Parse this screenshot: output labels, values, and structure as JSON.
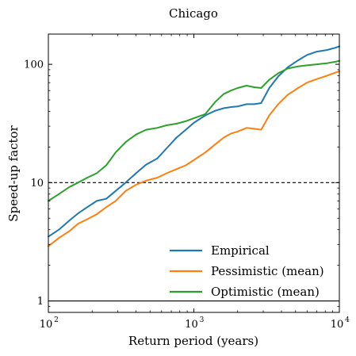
{
  "chart_data": {
    "type": "line",
    "title": "Chicago",
    "xlabel": "Return period (years)",
    "ylabel": "Speed-up factor",
    "xscale": "log",
    "yscale": "log",
    "xlim": [
      100,
      10000
    ],
    "ylim": [
      0.8,
      180
    ],
    "grid": false,
    "legend_position": "lower right",
    "x_ticks": [
      {
        "value": 100,
        "base": "10",
        "exp": "2"
      },
      {
        "value": 1000,
        "base": "10",
        "exp": "3"
      },
      {
        "value": 10000,
        "base": "10",
        "exp": "4"
      }
    ],
    "y_ticks": [
      {
        "value": 1,
        "label": "1"
      },
      {
        "value": 10,
        "label": "10"
      },
      {
        "value": 100,
        "label": "100"
      }
    ],
    "reference_lines": [
      {
        "y": 10,
        "style": "dashed",
        "color": "#000000"
      },
      {
        "y": 1,
        "style": "solid",
        "color": "#000000"
      }
    ],
    "series": [
      {
        "name": "Empirical",
        "color": "#1f77b4",
        "x": [
          100,
          118,
          140,
          160,
          185,
          215,
          250,
          290,
          340,
          400,
          470,
          560,
          650,
          760,
          880,
          1000,
          1200,
          1400,
          1600,
          1800,
          2000,
          2300,
          2600,
          2900,
          3300,
          3800,
          4400,
          5200,
          6000,
          7000,
          8200,
          9400,
          10000
        ],
        "y": [
          3.5,
          4.0,
          4.8,
          5.5,
          6.2,
          7.0,
          7.3,
          8.5,
          10.0,
          12.0,
          14.2,
          16.0,
          19.5,
          24.0,
          28.0,
          32.0,
          37.0,
          40.5,
          42.5,
          43.5,
          44.0,
          46.0,
          46.0,
          47.0,
          63.0,
          79.0,
          94.0,
          108.0,
          120.0,
          128.0,
          132.0,
          138.0,
          142.0
        ]
      },
      {
        "name": "Pessimistic (mean)",
        "color": "#ff7f0e",
        "x": [
          100,
          118,
          140,
          160,
          185,
          215,
          250,
          290,
          340,
          400,
          470,
          560,
          650,
          760,
          880,
          1000,
          1200,
          1400,
          1600,
          1800,
          2000,
          2300,
          2600,
          2900,
          3300,
          3800,
          4400,
          5200,
          6000,
          7000,
          8200,
          9400,
          10000
        ],
        "y": [
          2.9,
          3.4,
          3.9,
          4.5,
          4.9,
          5.4,
          6.2,
          7.0,
          8.5,
          9.6,
          10.4,
          11.0,
          12.0,
          13.0,
          14.0,
          15.5,
          18.0,
          21.0,
          24.0,
          26.0,
          27.0,
          29.0,
          28.5,
          28.0,
          37.0,
          46.0,
          55.0,
          63.0,
          70.0,
          75.0,
          80.0,
          85.0,
          87.0
        ]
      },
      {
        "name": "Optimistic (mean)",
        "color": "#2ca02c",
        "x": [
          100,
          118,
          140,
          160,
          185,
          215,
          250,
          290,
          340,
          400,
          470,
          560,
          650,
          760,
          880,
          1000,
          1200,
          1400,
          1600,
          1800,
          2000,
          2300,
          2600,
          2900,
          3300,
          3800,
          4400,
          5200,
          6000,
          7000,
          8200,
          9400,
          10000
        ],
        "y": [
          7.0,
          8.0,
          9.2,
          10.0,
          11.0,
          12.0,
          14.0,
          18.0,
          22.0,
          25.5,
          28.0,
          29.0,
          30.5,
          31.5,
          33.0,
          35.0,
          38.0,
          48.0,
          56.0,
          60.0,
          63.0,
          66.0,
          64.0,
          63.0,
          74.0,
          84.0,
          92.0,
          96.0,
          98.0,
          100.0,
          102.0,
          105.0,
          107.0
        ]
      }
    ]
  }
}
